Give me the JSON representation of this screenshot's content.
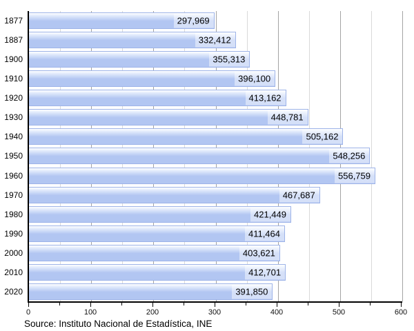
{
  "chart_data": {
    "type": "bar",
    "orientation": "horizontal",
    "title": "",
    "xlabel": "",
    "ylabel": "",
    "categories": [
      "1877",
      "1887",
      "1900",
      "1910",
      "1920",
      "1930",
      "1940",
      "1950",
      "1960",
      "1970",
      "1980",
      "1990",
      "2000",
      "2010",
      "2020"
    ],
    "values": [
      297969,
      332412,
      355313,
      396100,
      413162,
      448781,
      505162,
      548256,
      556759,
      467687,
      421449,
      411464,
      403621,
      412701,
      391850
    ],
    "value_labels": [
      "297,969",
      "332,412",
      "355,313",
      "396,100",
      "413,162",
      "448,781",
      "505,162",
      "548,256",
      "556,759",
      "467,687",
      "421,449",
      "411,464",
      "403,621",
      "412,701",
      "391,850"
    ],
    "x_axis": {
      "min": 0,
      "max": 600,
      "units_per_value": 0.001,
      "major_ticks": [
        0,
        100,
        200,
        300,
        400,
        500,
        600
      ],
      "minor_tick_step": 50
    },
    "grid": true,
    "legend": null,
    "source": "Source: Instituto Nacional de Estadística, INE",
    "colors": {
      "bar_fill": "#b2c6f2",
      "bar_border": "#9db3e8",
      "grid_major": "#a3a3a3",
      "grid_minor": "#d9d9d9",
      "axis": "#000000",
      "value_label_bg": "rgba(255,255,255,0.45)",
      "text": "#000000"
    }
  }
}
